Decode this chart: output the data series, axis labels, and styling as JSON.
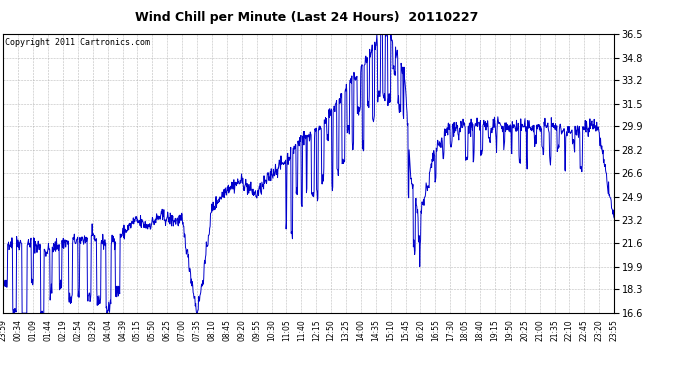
{
  "title": "Wind Chill per Minute (Last 24 Hours)  20110227",
  "copyright": "Copyright 2011 Cartronics.com",
  "line_color": "#0000cc",
  "background_color": "#ffffff",
  "grid_color": "#aaaaaa",
  "ylim": [
    16.6,
    36.5
  ],
  "yticks": [
    16.6,
    18.3,
    19.9,
    21.6,
    23.2,
    24.9,
    26.6,
    28.2,
    29.9,
    31.5,
    33.2,
    34.8,
    36.5
  ],
  "xtick_labels": [
    "23:59",
    "00:34",
    "01:09",
    "01:44",
    "02:19",
    "02:54",
    "03:29",
    "04:04",
    "04:39",
    "05:15",
    "05:50",
    "06:25",
    "07:00",
    "07:35",
    "08:10",
    "08:45",
    "09:20",
    "09:55",
    "10:30",
    "11:05",
    "11:40",
    "12:15",
    "12:50",
    "13:25",
    "14:00",
    "14:35",
    "15:10",
    "15:45",
    "16:20",
    "16:55",
    "17:30",
    "18:05",
    "18:40",
    "19:15",
    "19:50",
    "20:25",
    "21:00",
    "21:35",
    "22:10",
    "22:45",
    "23:20",
    "23:55"
  ],
  "title_fontsize": 9,
  "ytick_fontsize": 7,
  "xtick_fontsize": 5.5,
  "copyright_fontsize": 6,
  "linewidth": 0.7,
  "seed": 42,
  "n_points": 1440,
  "key_times_idx": [
    0,
    35,
    70,
    100,
    140,
    175,
    210,
    240,
    280,
    310,
    340,
    370,
    400,
    421,
    456,
    470,
    491,
    526,
    561,
    596,
    631,
    666,
    701,
    736,
    771,
    806,
    841,
    876,
    890,
    911,
    946,
    960,
    981,
    1016,
    1051,
    1086,
    1121,
    1156,
    1191,
    1226,
    1261,
    1296,
    1331,
    1366,
    1400,
    1439
  ],
  "key_times_val": [
    21.6,
    21.6,
    21.6,
    21.0,
    21.6,
    21.8,
    22.0,
    21.6,
    22.2,
    23.2,
    22.8,
    23.5,
    23.2,
    23.2,
    16.6,
    19.0,
    24.0,
    25.5,
    26.0,
    25.0,
    26.5,
    27.5,
    29.0,
    29.5,
    30.8,
    32.5,
    34.0,
    35.5,
    36.5,
    36.3,
    33.5,
    26.0,
    23.5,
    28.0,
    29.9,
    29.9,
    29.9,
    30.0,
    29.9,
    29.9,
    29.9,
    29.9,
    29.5,
    29.9,
    29.9,
    23.2
  ]
}
